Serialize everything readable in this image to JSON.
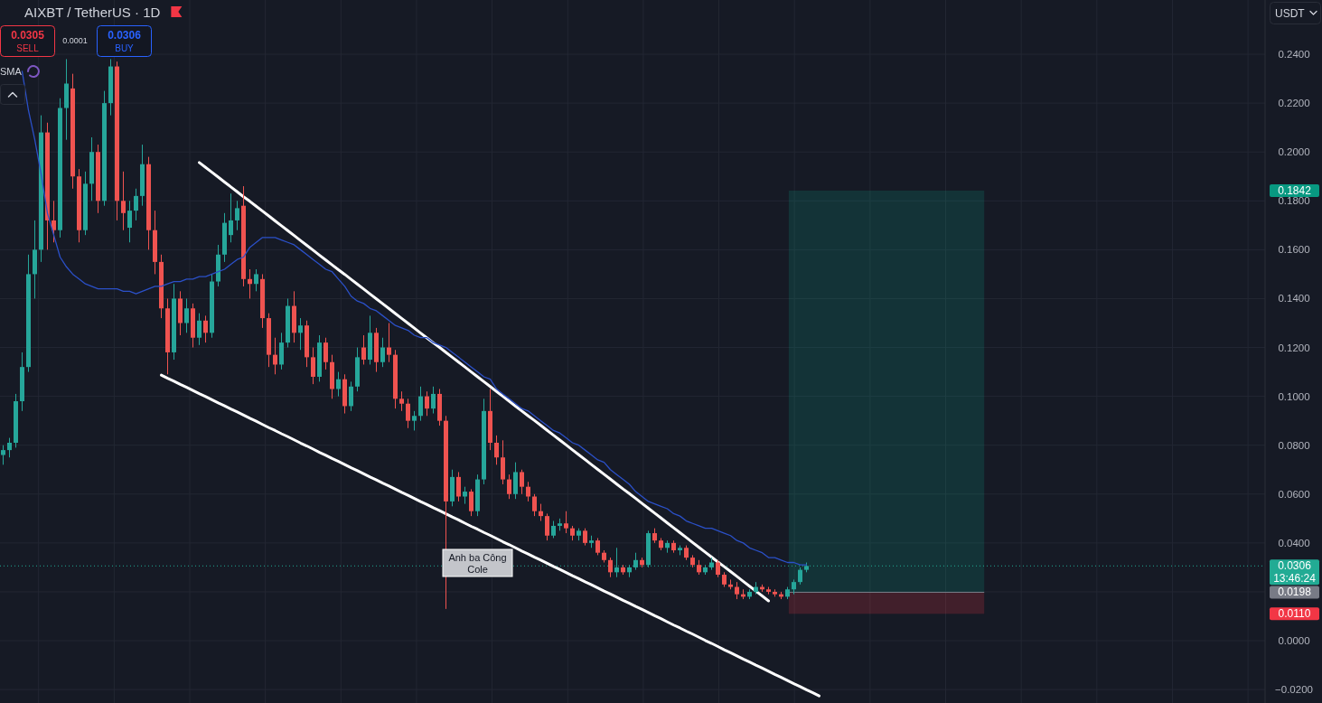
{
  "chart_data": {
    "type": "candlestick",
    "title": "AIXBT / TetherUS · 1D",
    "categories": [
      null,
      null,
      null,
      null,
      null,
      null,
      null,
      null,
      null,
      null,
      null,
      null,
      null,
      null,
      null,
      null,
      null,
      null,
      null,
      null,
      null,
      null,
      null,
      null,
      null,
      null,
      null,
      null,
      null,
      null,
      null,
      null,
      null,
      null,
      null,
      null,
      null,
      null,
      null,
      null,
      null,
      null,
      null,
      null,
      null,
      null,
      null,
      null,
      null,
      null,
      null,
      null,
      null,
      null,
      null,
      null,
      null,
      null,
      null,
      null,
      null,
      null,
      null,
      null,
      null,
      null,
      null,
      null,
      null,
      null,
      null,
      null,
      null,
      null,
      null,
      null,
      null,
      null,
      null,
      null,
      null,
      null,
      null,
      null,
      null,
      null,
      null,
      null,
      null,
      null,
      null,
      null,
      null,
      null,
      null,
      null,
      null,
      null,
      null,
      null,
      null,
      null,
      null,
      null,
      null,
      null,
      null,
      null,
      null,
      null,
      null,
      null,
      null,
      null,
      null,
      null,
      null,
      null,
      null,
      null,
      null,
      null,
      null,
      null,
      null,
      null,
      null,
      null,
      null,
      null,
      null,
      null,
      null,
      null,
      null,
      null,
      null,
      null,
      null,
      null,
      null,
      null,
      null,
      null,
      null,
      null,
      null,
      null,
      null,
      null,
      null,
      null,
      null,
      null,
      null,
      null,
      null,
      null,
      null,
      null,
      null,
      null,
      null,
      null,
      null,
      null,
      null,
      null,
      null,
      null,
      null,
      null,
      null,
      null,
      null,
      null,
      null,
      null,
      null,
      null,
      null,
      null,
      null,
      null,
      null,
      null,
      null,
      null,
      null,
      null,
      null,
      null,
      null,
      null,
      null,
      null,
      null,
      null,
      null,
      null
    ],
    "ohlc": [
      [
        0.076,
        0.08,
        0.072,
        0.078
      ],
      [
        0.078,
        0.083,
        0.075,
        0.081
      ],
      [
        0.081,
        0.101,
        0.079,
        0.098
      ],
      [
        0.098,
        0.118,
        0.094,
        0.112
      ],
      [
        0.112,
        0.158,
        0.11,
        0.15
      ],
      [
        0.15,
        0.172,
        0.14,
        0.16
      ],
      [
        0.16,
        0.215,
        0.155,
        0.208
      ],
      [
        0.208,
        0.212,
        0.16,
        0.172
      ],
      [
        0.172,
        0.18,
        0.163,
        0.168
      ],
      [
        0.168,
        0.222,
        0.165,
        0.218
      ],
      [
        0.218,
        0.238,
        0.205,
        0.228
      ],
      [
        0.226,
        0.232,
        0.185,
        0.19
      ],
      [
        0.19,
        0.193,
        0.163,
        0.168
      ],
      [
        0.168,
        0.192,
        0.166,
        0.187
      ],
      [
        0.187,
        0.206,
        0.18,
        0.2
      ],
      [
        0.2,
        0.203,
        0.175,
        0.18
      ],
      [
        0.18,
        0.225,
        0.178,
        0.22
      ],
      [
        0.22,
        0.238,
        0.215,
        0.235
      ],
      [
        0.235,
        0.237,
        0.172,
        0.18
      ],
      [
        0.18,
        0.192,
        0.168,
        0.175
      ],
      [
        0.169,
        0.18,
        0.163,
        0.176
      ],
      [
        0.176,
        0.185,
        0.172,
        0.182
      ],
      [
        0.182,
        0.203,
        0.178,
        0.195
      ],
      [
        0.195,
        0.198,
        0.16,
        0.168
      ],
      [
        0.168,
        0.176,
        0.15,
        0.155
      ],
      [
        0.155,
        0.158,
        0.132,
        0.136
      ],
      [
        0.136,
        0.14,
        0.109,
        0.118
      ],
      [
        0.118,
        0.146,
        0.115,
        0.14
      ],
      [
        0.14,
        0.143,
        0.125,
        0.13
      ],
      [
        0.13,
        0.14,
        0.126,
        0.136
      ],
      [
        0.136,
        0.138,
        0.12,
        0.124
      ],
      [
        0.124,
        0.134,
        0.121,
        0.131
      ],
      [
        0.131,
        0.133,
        0.122,
        0.126
      ],
      [
        0.126,
        0.15,
        0.124,
        0.147
      ],
      [
        0.147,
        0.162,
        0.145,
        0.158
      ],
      [
        0.158,
        0.175,
        0.155,
        0.171
      ],
      [
        0.166,
        0.183,
        0.163,
        0.172
      ],
      [
        0.172,
        0.18,
        0.168,
        0.177
      ],
      [
        0.178,
        0.186,
        0.145,
        0.148
      ],
      [
        0.148,
        0.152,
        0.14,
        0.146
      ],
      [
        0.146,
        0.152,
        0.143,
        0.15
      ],
      [
        0.148,
        0.15,
        0.128,
        0.132
      ],
      [
        0.132,
        0.134,
        0.112,
        0.117
      ],
      [
        0.117,
        0.124,
        0.109,
        0.113
      ],
      [
        0.113,
        0.126,
        0.111,
        0.122
      ],
      [
        0.122,
        0.14,
        0.12,
        0.137
      ],
      [
        0.137,
        0.143,
        0.122,
        0.126
      ],
      [
        0.126,
        0.132,
        0.119,
        0.129
      ],
      [
        0.129,
        0.131,
        0.112,
        0.116
      ],
      [
        0.116,
        0.12,
        0.105,
        0.108
      ],
      [
        0.108,
        0.125,
        0.106,
        0.122
      ],
      [
        0.122,
        0.124,
        0.111,
        0.114
      ],
      [
        0.114,
        0.117,
        0.099,
        0.103
      ],
      [
        0.103,
        0.11,
        0.1,
        0.107
      ],
      [
        0.107,
        0.109,
        0.093,
        0.096
      ],
      [
        0.096,
        0.106,
        0.094,
        0.104
      ],
      [
        0.104,
        0.12,
        0.102,
        0.116
      ],
      [
        0.12,
        0.125,
        0.113,
        0.115
      ],
      [
        0.115,
        0.133,
        0.113,
        0.126
      ],
      [
        0.126,
        0.128,
        0.11,
        0.114
      ],
      [
        0.114,
        0.124,
        0.112,
        0.12
      ],
      [
        0.12,
        0.13,
        0.114,
        0.117
      ],
      [
        0.117,
        0.119,
        0.095,
        0.099
      ],
      [
        0.099,
        0.102,
        0.094,
        0.097
      ],
      [
        0.097,
        0.099,
        0.087,
        0.09
      ],
      [
        0.09,
        0.094,
        0.086,
        0.092
      ],
      [
        0.092,
        0.104,
        0.09,
        0.1
      ],
      [
        0.1,
        0.102,
        0.092,
        0.095
      ],
      [
        0.095,
        0.104,
        0.093,
        0.101
      ],
      [
        0.101,
        0.103,
        0.088,
        0.09
      ],
      [
        0.09,
        0.092,
        0.013,
        0.057
      ],
      [
        0.057,
        0.07,
        0.055,
        0.067
      ],
      [
        0.067,
        0.069,
        0.057,
        0.059
      ],
      [
        0.059,
        0.063,
        0.056,
        0.061
      ],
      [
        0.061,
        0.062,
        0.051,
        0.053
      ],
      [
        0.053,
        0.068,
        0.051,
        0.066
      ],
      [
        0.066,
        0.099,
        0.064,
        0.094
      ],
      [
        0.094,
        0.103,
        0.078,
        0.081
      ],
      [
        0.081,
        0.084,
        0.072,
        0.075
      ],
      [
        0.075,
        0.082,
        0.064,
        0.066
      ],
      [
        0.066,
        0.068,
        0.058,
        0.06
      ],
      [
        0.06,
        0.073,
        0.058,
        0.069
      ],
      [
        0.069,
        0.07,
        0.06,
        0.063
      ],
      [
        0.063,
        0.065,
        0.057,
        0.059
      ],
      [
        0.059,
        0.06,
        0.051,
        0.053
      ],
      [
        0.053,
        0.056,
        0.049,
        0.051
      ],
      [
        0.051,
        0.052,
        0.041,
        0.043
      ],
      [
        0.043,
        0.049,
        0.042,
        0.047
      ],
      [
        0.047,
        0.05,
        0.045,
        0.048
      ],
      [
        0.048,
        0.053,
        0.044,
        0.046
      ],
      [
        0.046,
        0.047,
        0.041,
        0.043
      ],
      [
        0.043,
        0.046,
        0.041,
        0.045
      ],
      [
        0.045,
        0.046,
        0.039,
        0.04
      ],
      [
        0.04,
        0.043,
        0.038,
        0.041
      ],
      [
        0.041,
        0.042,
        0.035,
        0.036
      ],
      [
        0.036,
        0.037,
        0.032,
        0.033
      ],
      [
        0.033,
        0.034,
        0.026,
        0.028
      ],
      [
        0.028,
        0.038,
        0.026,
        0.03
      ],
      [
        0.03,
        0.031,
        0.027,
        0.028
      ],
      [
        0.028,
        0.031,
        0.026,
        0.03
      ],
      [
        0.03,
        0.036,
        0.029,
        0.033
      ],
      [
        0.033,
        0.034,
        0.03,
        0.031
      ],
      [
        0.031,
        0.045,
        0.03,
        0.044
      ],
      [
        0.044,
        0.046,
        0.04,
        0.041
      ],
      [
        0.041,
        0.042,
        0.037,
        0.038
      ],
      [
        0.038,
        0.041,
        0.036,
        0.04
      ],
      [
        0.04,
        0.041,
        0.036,
        0.037
      ],
      [
        0.037,
        0.039,
        0.035,
        0.038
      ],
      [
        0.038,
        0.039,
        0.033,
        0.034
      ],
      [
        0.034,
        0.035,
        0.03,
        0.031
      ],
      [
        0.031,
        0.033,
        0.027,
        0.028
      ],
      [
        0.028,
        0.031,
        0.027,
        0.03
      ],
      [
        0.03,
        0.034,
        0.029,
        0.032
      ],
      [
        0.032,
        0.033,
        0.026,
        0.027
      ],
      [
        0.027,
        0.028,
        0.022,
        0.023
      ],
      [
        0.023,
        0.025,
        0.021,
        0.022
      ],
      [
        0.022,
        0.024,
        0.017,
        0.019
      ],
      [
        0.019,
        0.021,
        0.017,
        0.018
      ],
      [
        0.018,
        0.021,
        0.017,
        0.02
      ],
      [
        0.02,
        0.024,
        0.019,
        0.022
      ],
      [
        0.022,
        0.023,
        0.02,
        0.021
      ],
      [
        0.021,
        0.022,
        0.019,
        0.02
      ],
      [
        0.02,
        0.021,
        0.018,
        0.019
      ],
      [
        0.019,
        0.02,
        0.017,
        0.018
      ],
      [
        0.018,
        0.022,
        0.017,
        0.021
      ],
      [
        0.021,
        0.025,
        0.019,
        0.024
      ],
      [
        0.024,
        0.03,
        0.023,
        0.029
      ],
      [
        0.029,
        0.032,
        0.028,
        0.0306
      ],
      null,
      null,
      null,
      null,
      null,
      null,
      null,
      null,
      null,
      null,
      null,
      null,
      null,
      null,
      null,
      null,
      null,
      null,
      null,
      null,
      null,
      null,
      null,
      null,
      null,
      null,
      null,
      null,
      null,
      null,
      null,
      null,
      null,
      null,
      null,
      null,
      null,
      null,
      null,
      null,
      null,
      null,
      null,
      null,
      null,
      null,
      null,
      null,
      null,
      null,
      null,
      null,
      null,
      null,
      null,
      null,
      null,
      null,
      null,
      null,
      null,
      null,
      null,
      null,
      null,
      null,
      null,
      null,
      null,
      null,
      null,
      null
    ],
    "series": [
      {
        "name": "SMA",
        "type": "line",
        "color": "#2b50c8",
        "values": [
          null,
          null,
          null,
          0.233,
          0.217,
          0.205,
          0.191,
          0.175,
          0.166,
          0.157,
          0.153,
          0.15,
          0.148,
          0.146,
          0.145,
          0.144,
          0.144,
          0.144,
          0.144,
          0.143,
          0.143,
          0.142,
          0.143,
          0.144,
          0.145,
          0.145,
          0.146,
          0.147,
          0.147,
          0.148,
          0.148,
          0.149,
          0.149,
          0.15,
          0.151,
          0.152,
          0.154,
          0.156,
          0.157,
          0.161,
          0.163,
          0.165,
          0.165,
          0.165,
          0.164,
          0.163,
          0.162,
          0.16,
          0.158,
          0.156,
          0.154,
          0.152,
          0.151,
          0.148,
          0.145,
          0.141,
          0.139,
          0.138,
          0.136,
          0.135,
          0.133,
          0.131,
          0.129,
          0.128,
          0.127,
          0.125,
          0.124,
          0.124,
          0.122,
          0.121,
          0.12,
          0.118,
          0.116,
          0.114,
          0.112,
          0.11,
          0.108,
          0.107,
          0.103,
          0.101,
          0.099,
          0.097,
          0.095,
          0.094,
          0.092,
          0.09,
          0.088,
          0.086,
          0.085,
          0.083,
          0.081,
          0.08,
          0.078,
          0.076,
          0.074,
          0.073,
          0.07,
          0.068,
          0.066,
          0.064,
          0.061,
          0.059,
          0.057,
          0.056,
          0.055,
          0.054,
          0.052,
          0.051,
          0.049,
          0.048,
          0.047,
          0.046,
          0.046,
          0.045,
          0.044,
          0.043,
          0.041,
          0.04,
          0.038,
          0.037,
          0.036,
          0.034,
          0.034,
          0.033,
          0.032,
          0.032,
          0.031,
          0.031,
          null,
          null,
          null,
          null,
          null,
          null,
          null,
          null,
          null,
          null,
          null,
          null,
          null,
          null,
          null,
          null,
          null,
          null,
          null,
          null,
          null,
          null,
          null,
          null,
          null,
          null,
          null,
          null,
          null,
          null,
          null,
          null,
          null,
          null,
          null,
          null,
          null,
          null,
          null,
          null,
          null,
          null,
          null,
          null,
          null,
          null,
          null,
          null,
          null,
          null,
          null,
          null,
          null,
          null,
          null,
          null,
          null,
          null,
          null,
          null,
          null,
          null,
          null,
          null,
          null,
          null,
          null,
          null,
          null,
          null,
          null,
          null
        ]
      },
      {
        "type": "line",
        "color": "#ffffff",
        "values": [
          null,
          null,
          null,
          null,
          null,
          null,
          null,
          null,
          null,
          null,
          null,
          null,
          null,
          null,
          null,
          null,
          null,
          null,
          null,
          null,
          null,
          null,
          null,
          null,
          null,
          null,
          null,
          null,
          null,
          null,
          null,
          0.1957,
          0.1937,
          0.1917,
          0.1897,
          0.1877,
          0.1857,
          0.1837,
          0.1817,
          0.1798,
          0.1778,
          0.1758,
          0.1738,
          0.1718,
          0.1698,
          0.1678,
          0.1658,
          0.1638,
          0.1618,
          0.1598,
          0.1578,
          0.1558,
          0.1538,
          0.1518,
          0.1499,
          0.1479,
          0.1459,
          0.1439,
          0.1419,
          0.1399,
          0.1379,
          0.1359,
          0.1339,
          0.1319,
          0.1299,
          0.1279,
          0.1259,
          0.1239,
          0.1219,
          0.12,
          0.118,
          0.116,
          0.114,
          0.112,
          0.11,
          0.108,
          0.106,
          0.104,
          0.102,
          0.1,
          0.098,
          0.096,
          0.094,
          0.092,
          0.0901,
          0.0881,
          0.0861,
          0.0841,
          0.0821,
          0.0801,
          0.0781,
          0.0761,
          0.0741,
          0.0721,
          0.0701,
          0.0681,
          0.0661,
          0.0641,
          0.0621,
          0.0602,
          0.0582,
          0.0562,
          0.0542,
          0.0522,
          0.0502,
          0.0482,
          0.0462,
          0.0442,
          0.0422,
          0.0402,
          0.0382,
          0.0362,
          0.0342,
          0.0322,
          0.0303,
          0.0283,
          0.0263,
          0.0243,
          0.0223,
          0.0203,
          0.0183,
          0.0163,
          null,
          null,
          null,
          null,
          null,
          null,
          null,
          null,
          null,
          null,
          null,
          null,
          null,
          null,
          null,
          null,
          null,
          null,
          null,
          null,
          null,
          null,
          null,
          null,
          null,
          null,
          null,
          null,
          null,
          null,
          null,
          null,
          null,
          null,
          null,
          null,
          null,
          null,
          null,
          null,
          null,
          null,
          null,
          null,
          null,
          null,
          null,
          null,
          null,
          null,
          null,
          null,
          null,
          null,
          null,
          null,
          null,
          null,
          null,
          null,
          null,
          null,
          null,
          null,
          null,
          null,
          null,
          null,
          null,
          null,
          null,
          null,
          null,
          null,
          null,
          null,
          null,
          null
        ]
      },
      {
        "type": "line",
        "color": "#ffffff",
        "values": [
          null,
          null,
          null,
          null,
          null,
          null,
          null,
          null,
          null,
          null,
          null,
          null,
          null,
          null,
          null,
          null,
          null,
          null,
          null,
          null,
          null,
          null,
          null,
          null,
          null,
          0.1087,
          0.1074,
          0.1062,
          0.1049,
          0.1037,
          0.1024,
          0.1011,
          0.0999,
          0.0986,
          0.0973,
          0.0961,
          0.0948,
          0.0936,
          0.0923,
          0.091,
          0.0898,
          0.0885,
          0.0872,
          0.086,
          0.0847,
          0.0835,
          0.0822,
          0.0809,
          0.0797,
          0.0784,
          0.0771,
          0.0759,
          0.0746,
          0.0734,
          0.0721,
          0.0708,
          0.0696,
          0.0683,
          0.067,
          0.0658,
          0.0645,
          0.0633,
          0.062,
          0.0607,
          0.0595,
          0.0582,
          0.0569,
          0.0557,
          0.0544,
          0.0532,
          0.0519,
          0.0506,
          0.0494,
          0.0481,
          0.0468,
          0.0456,
          0.0443,
          0.0431,
          0.0418,
          0.0405,
          0.0393,
          0.038,
          0.0367,
          0.0355,
          0.0342,
          0.033,
          0.0317,
          0.0304,
          0.0292,
          0.0279,
          0.0266,
          0.0254,
          0.0241,
          0.0229,
          0.0216,
          0.0203,
          0.0191,
          0.0178,
          0.0165,
          0.0153,
          0.014,
          0.0128,
          0.0115,
          0.0102,
          0.009,
          0.0077,
          0.0064,
          0.0052,
          0.0039,
          0.0027,
          0.0014,
          0.0001,
          -0.0011,
          -0.0024,
          -0.0037,
          -0.0049,
          -0.0062,
          -0.0075,
          -0.0087,
          -0.01,
          -0.0112,
          -0.0125,
          -0.0138,
          -0.015,
          -0.0163,
          -0.0176,
          -0.0188,
          -0.0201,
          -0.0213,
          -0.0226,
          null,
          null,
          null,
          null,
          null,
          null,
          null,
          null,
          null,
          null,
          null,
          null,
          null,
          null,
          null,
          null,
          null,
          null,
          null,
          null,
          null,
          null,
          null,
          null,
          null,
          null,
          null,
          null,
          null,
          null,
          null,
          null,
          null,
          null,
          null,
          null,
          null,
          null,
          null,
          null,
          null,
          null,
          null,
          null,
          null,
          null,
          null,
          null,
          null,
          null,
          null,
          null,
          null,
          null,
          null,
          null,
          null,
          null,
          null,
          null,
          null,
          null,
          null,
          null,
          null,
          null,
          null,
          null,
          null,
          null
        ]
      }
    ],
    "ylim": [
      -0.0255,
      0.2622
    ],
    "yticks": [
      {
        "value": -0.02,
        "label": "−0.0200"
      },
      {
        "value": 0,
        "label": "0.0000"
      },
      {
        "value": 0.02,
        "label": null
      },
      {
        "value": 0.04,
        "label": "0.0400"
      },
      {
        "value": 0.06,
        "label": "0.0600"
      },
      {
        "value": 0.08,
        "label": "0.0800"
      },
      {
        "value": 0.1,
        "label": "0.1000"
      },
      {
        "value": 0.12,
        "label": "0.1200"
      },
      {
        "value": 0.14,
        "label": "0.1400"
      },
      {
        "value": 0.16,
        "label": "0.1600"
      },
      {
        "value": 0.18,
        "label": "0.1800"
      },
      {
        "value": 0.2,
        "label": "0.2000"
      },
      {
        "value": 0.22,
        "label": "0.2200"
      },
      {
        "value": 0.24,
        "label": "0.2400"
      }
    ],
    "tick_labels": "y",
    "grid": true,
    "legend": "top left",
    "ref_lines": [
      {
        "axis": "y",
        "value": 0.0306,
        "label": "0.0306",
        "color": "#22ab94",
        "line_style": "dotted"
      },
      {
        "axis": "y",
        "value": 0.0198,
        "color": "#787b86"
      }
    ],
    "bands": [
      {
        "axis": "y",
        "from": 0.0198,
        "to": 0.1842,
        "color": "#089981"
      },
      {
        "axis": "y",
        "from": 0.011,
        "to": 0.0198,
        "color": "#f23645"
      }
    ],
    "annotations": [
      "0.0305",
      "SELL",
      "0.0001",
      "0.0306",
      "BUY",
      "USDT",
      "13:46:24",
      "Anh ba Công Cole",
      "0.1842",
      "0.0198",
      "0.0110"
    ]
  }
}
